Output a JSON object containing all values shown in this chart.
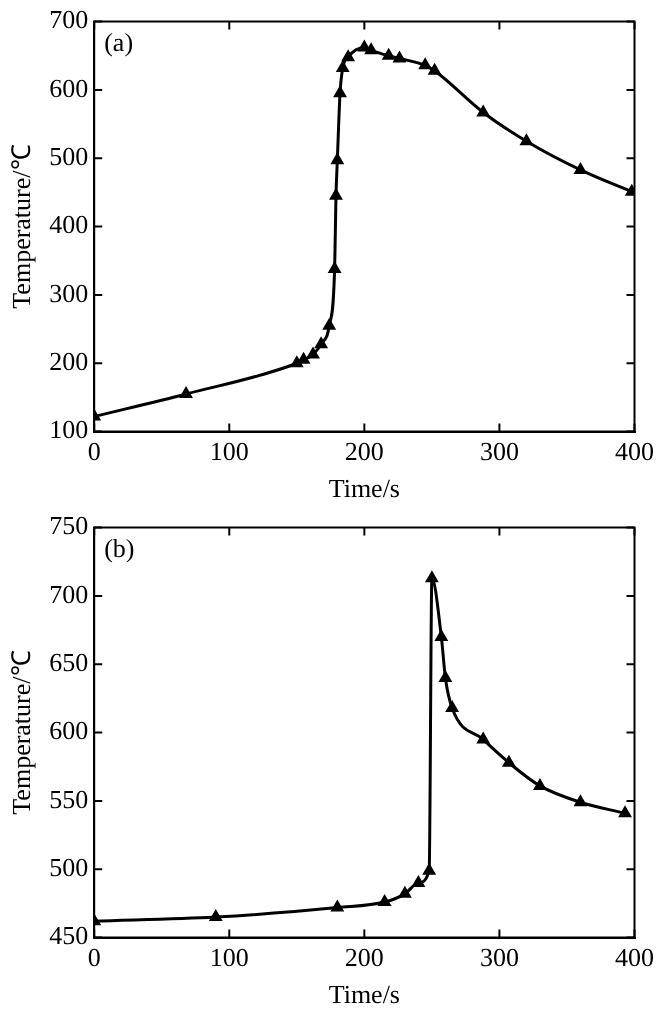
{
  "chart_data": [
    {
      "type": "line",
      "title": "(a)",
      "xlabel": "Time/s",
      "ylabel": "Temperature/℃",
      "xlim": [
        0,
        400
      ],
      "xticks": [
        0,
        100,
        200,
        300,
        400
      ],
      "ylim": [
        100,
        700
      ],
      "yticks": [
        100,
        200,
        300,
        400,
        500,
        600,
        700
      ],
      "marker": "triangle",
      "line_style": "solid",
      "grid": false,
      "legend": false,
      "series": [
        {
          "color": "#000000",
          "x": [
            0,
            68,
            150,
            155,
            162,
            168,
            174,
            178,
            179,
            180,
            182,
            184,
            188,
            200,
            205,
            218,
            226,
            245,
            252,
            288,
            320,
            360,
            398
          ],
          "values": [
            122,
            155,
            200,
            205,
            213,
            228,
            255,
            338,
            445,
            497,
            595,
            632,
            648,
            662,
            658,
            650,
            646,
            636,
            628,
            567,
            525,
            483,
            451
          ]
        }
      ]
    },
    {
      "type": "line",
      "title": "(b)",
      "xlabel": "Time/s",
      "ylabel": "Temperature/℃",
      "xlim": [
        0,
        400
      ],
      "xticks": [
        0,
        100,
        200,
        300,
        400
      ],
      "ylim": [
        450,
        750
      ],
      "yticks": [
        450,
        500,
        550,
        600,
        650,
        700,
        750
      ],
      "marker": "triangle",
      "line_style": "solid",
      "grid": false,
      "legend": false,
      "series": [
        {
          "color": "#000000",
          "x": [
            0,
            90,
            180,
            215,
            230,
            240,
            248,
            250,
            257,
            260,
            265,
            288,
            307,
            330,
            360,
            393
          ],
          "values": [
            462,
            465,
            472,
            476,
            482,
            490,
            499,
            713,
            670,
            640,
            618,
            595,
            578,
            561,
            549,
            541
          ]
        }
      ]
    }
  ]
}
